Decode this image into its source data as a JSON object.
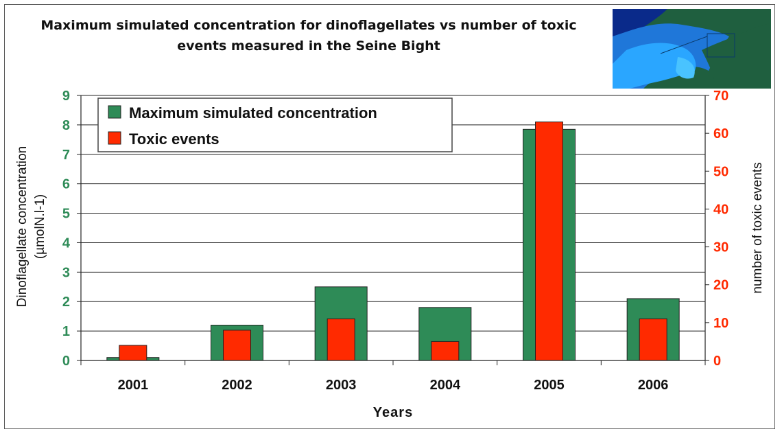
{
  "chart_data": {
    "type": "bar",
    "title": "Maximum simulated concentration for dinoflagellates vs number of toxic events measured in the Seine Bight",
    "categories": [
      "2001",
      "2002",
      "2003",
      "2004",
      "2005",
      "2006"
    ],
    "xlabel": "Years",
    "ylabel_left": "Dinoflagellate concentration (µmolN.l-1)",
    "ylabel_left_lines": [
      "Dinoflagellate concentration",
      "(µmolN.l-1)"
    ],
    "ylabel_right": "number of toxic events",
    "ylim_left": [
      0,
      9
    ],
    "ylim_right": [
      0,
      70
    ],
    "yticks_left": [
      "0",
      "1",
      "2",
      "3",
      "4",
      "5",
      "6",
      "7",
      "8",
      "9"
    ],
    "yticks_right": [
      "0",
      "10",
      "20",
      "30",
      "40",
      "50",
      "60",
      "70"
    ],
    "grid": true,
    "legend_position": "top-left",
    "series": [
      {
        "name": "Maximum simulated concentration",
        "axis": "left",
        "color": "#2e8b57",
        "values": [
          0.1,
          1.2,
          2.5,
          1.8,
          7.85,
          2.1
        ]
      },
      {
        "name": "Toxic events",
        "axis": "right",
        "color": "#ff2a00",
        "values": [
          4,
          8,
          11,
          5,
          63,
          11
        ]
      }
    ]
  },
  "inset_map": {
    "colors": {
      "land": "#1f5f3f",
      "water_deep": "#0a2a8a",
      "water_shallow": "#2aa6ff"
    }
  }
}
